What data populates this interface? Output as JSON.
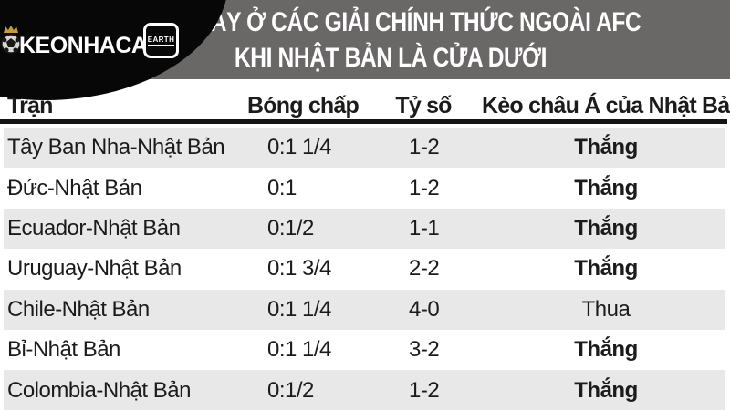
{
  "logo": {
    "brand": "KEONHACAI",
    "badge": "EARTH",
    "ball_icon": "soccer-ball",
    "crown_icon": "crown",
    "crown_color": "#c79b3a",
    "bg_color": "#070707"
  },
  "banner": {
    "title_line1": "GẦN ĐÂY Ở CÁC GIẢI CHÍNH THỨC NGOÀI AFC",
    "title_line2": "KHI NHẬT BẢN LÀ CỬA DƯỚI",
    "bg_color": "#6a6767",
    "text_color": "#ffffff"
  },
  "table": {
    "header": {
      "match": "Trận",
      "handicap": "Bóng chấp",
      "score": "Tỷ số",
      "result": "Kèo châu Á của Nhật Bản"
    },
    "stripe_color": "#e9e8e8",
    "rows": [
      {
        "match": "Tây Ban Nha-Nhật Bản",
        "handicap": "0:1 1/4",
        "score": "1-2",
        "result": "Thắng",
        "result_bold": true
      },
      {
        "match": "Đức-Nhật Bản",
        "handicap": "0:1",
        "score": "1-2",
        "result": "Thắng",
        "result_bold": true
      },
      {
        "match": "Ecuador-Nhật Bản",
        "handicap": "0:1/2",
        "score": "1-1",
        "result": "Thắng",
        "result_bold": true
      },
      {
        "match": "Uruguay-Nhật Bản",
        "handicap": "0:1 3/4",
        "score": "2-2",
        "result": "Thắng",
        "result_bold": true
      },
      {
        "match": "Chile-Nhật Bản",
        "handicap": "0:1 1/4",
        "score": "4-0",
        "result": "Thua",
        "result_bold": false
      },
      {
        "match": "Bỉ-Nhật Bản",
        "handicap": "0:1 1/4",
        "score": "3-2",
        "result": "Thắng",
        "result_bold": true
      },
      {
        "match": "Colombia-Nhật Bản",
        "handicap": "0:1/2",
        "score": "1-2",
        "result": "Thắng",
        "result_bold": true
      }
    ]
  },
  "chart_data": {
    "type": "table",
    "title": "GẦN ĐÂY Ở CÁC GIẢI CHÍNH THỨC NGOÀI AFC KHI NHẬT BẢN LÀ CỬA DƯỚI",
    "columns": [
      "Trận",
      "Bóng chấp",
      "Tỷ số",
      "Kèo châu Á của Nhật Bản"
    ],
    "rows": [
      [
        "Tây Ban Nha-Nhật Bản",
        "0:1 1/4",
        "1-2",
        "Thắng"
      ],
      [
        "Đức-Nhật Bản",
        "0:1",
        "1-2",
        "Thắng"
      ],
      [
        "Ecuador-Nhật Bản",
        "0:1/2",
        "1-1",
        "Thắng"
      ],
      [
        "Uruguay-Nhật Bản",
        "0:1 3/4",
        "2-2",
        "Thắng"
      ],
      [
        "Chile-Nhật Bản",
        "0:1 1/4",
        "4-0",
        "Thua"
      ],
      [
        "Bỉ-Nhật Bản",
        "0:1 1/4",
        "3-2",
        "Thắng"
      ],
      [
        "Colombia-Nhật Bản",
        "0:1/2",
        "1-2",
        "Thắng"
      ]
    ]
  }
}
